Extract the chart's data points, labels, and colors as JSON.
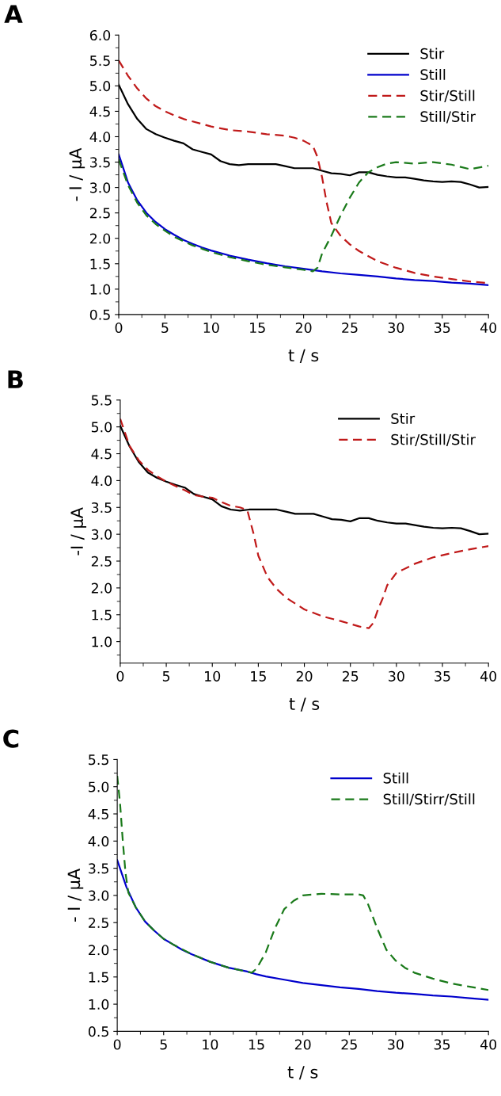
{
  "chart_data": [
    {
      "type": "line",
      "title": "A",
      "xlabel": "t / s",
      "ylabel": "- I / µA",
      "xlim": [
        0,
        40
      ],
      "xticks": [
        0,
        5,
        10,
        15,
        20,
        25,
        30,
        35,
        40
      ],
      "ylim": [
        0.5,
        6.0
      ],
      "yticks": [
        {
          "value": 0.5,
          "label": "0.5"
        },
        {
          "value": 1.0,
          "label": "1.0"
        },
        {
          "value": 1.5,
          "label": "1.5"
        },
        {
          "value": 2.0,
          "label": "2.0"
        },
        {
          "value": 2.5,
          "label": "2.5"
        },
        {
          "value": 3.0,
          "label": "3.0"
        },
        {
          "value": 3.5,
          "label": "3.5"
        },
        {
          "value": 4.0,
          "label": "4.0"
        },
        {
          "value": 4.5,
          "label": "4.5"
        },
        {
          "value": 5.0,
          "label": "5.0"
        },
        {
          "value": 5.5,
          "label": "5.5"
        },
        {
          "value": 6.0,
          "label": "6.0"
        }
      ],
      "grid": false,
      "legend": "top right",
      "marker": "none",
      "series": [
        {
          "name": "Stir",
          "color": "#000000",
          "line_style": "solid",
          "x": [
            0,
            1,
            2,
            3,
            4,
            5,
            6,
            7,
            8,
            9,
            10,
            11,
            12,
            13,
            14,
            15,
            16,
            17,
            18,
            19,
            20,
            21,
            22,
            23,
            24,
            25,
            26,
            27,
            28,
            29,
            30,
            31,
            32,
            33,
            34,
            35,
            36,
            37,
            38,
            39,
            40
          ],
          "values": [
            5.02,
            4.64,
            4.35,
            4.15,
            4.05,
            3.98,
            3.92,
            3.87,
            3.75,
            3.7,
            3.65,
            3.52,
            3.46,
            3.44,
            3.46,
            3.46,
            3.46,
            3.46,
            3.42,
            3.38,
            3.38,
            3.38,
            3.33,
            3.28,
            3.27,
            3.24,
            3.3,
            3.3,
            3.25,
            3.22,
            3.2,
            3.2,
            3.17,
            3.14,
            3.12,
            3.11,
            3.12,
            3.11,
            3.06,
            3.0,
            3.01
          ]
        },
        {
          "name": "Still",
          "color": "#0000cc",
          "line_style": "solid",
          "x": [
            0,
            1,
            2,
            3,
            4,
            5,
            6,
            7,
            8,
            9,
            10,
            12,
            14,
            16,
            18,
            20,
            22,
            24,
            26,
            28,
            30,
            32,
            34,
            36,
            38,
            40
          ],
          "values": [
            3.65,
            3.1,
            2.75,
            2.5,
            2.32,
            2.18,
            2.07,
            1.97,
            1.89,
            1.82,
            1.76,
            1.66,
            1.58,
            1.51,
            1.45,
            1.4,
            1.35,
            1.31,
            1.28,
            1.25,
            1.21,
            1.18,
            1.16,
            1.13,
            1.11,
            1.08
          ]
        },
        {
          "name": "Stir/Still",
          "color": "#c01a1a",
          "line_style": "dashed",
          "x": [
            0,
            1,
            2,
            3,
            4,
            5,
            6,
            7,
            8,
            9,
            10,
            12,
            14,
            16,
            18,
            19,
            20,
            21,
            21.5,
            22,
            22.5,
            23,
            24,
            25,
            26,
            27,
            28,
            30,
            32,
            34,
            36,
            38,
            40
          ],
          "values": [
            5.5,
            5.2,
            4.95,
            4.75,
            4.6,
            4.5,
            4.42,
            4.35,
            4.3,
            4.25,
            4.2,
            4.13,
            4.1,
            4.05,
            4.02,
            3.98,
            3.92,
            3.82,
            3.6,
            3.2,
            2.7,
            2.3,
            2.05,
            1.88,
            1.75,
            1.65,
            1.55,
            1.42,
            1.32,
            1.25,
            1.2,
            1.15,
            1.12
          ]
        },
        {
          "name": "Still/Stir",
          "color": "#1a7a1a",
          "line_style": "dashed",
          "x": [
            0,
            1,
            2,
            3,
            4,
            5,
            6,
            8,
            10,
            12,
            14,
            16,
            18,
            20,
            21,
            21.5,
            22,
            23,
            24,
            25,
            26,
            27,
            28,
            29,
            30,
            32,
            34,
            36,
            38,
            40
          ],
          "values": [
            3.55,
            3.05,
            2.7,
            2.45,
            2.28,
            2.15,
            2.03,
            1.86,
            1.73,
            1.63,
            1.55,
            1.48,
            1.43,
            1.38,
            1.35,
            1.42,
            1.7,
            2.05,
            2.45,
            2.8,
            3.1,
            3.3,
            3.4,
            3.47,
            3.5,
            3.47,
            3.5,
            3.45,
            3.36,
            3.43
          ]
        }
      ]
    },
    {
      "type": "line",
      "title": "B",
      "xlabel": "t / s",
      "ylabel": "-I / µA",
      "xlim": [
        0,
        40
      ],
      "xticks": [
        0,
        5,
        10,
        15,
        20,
        25,
        30,
        35,
        40
      ],
      "ylim": [
        0.6,
        5.5
      ],
      "yticks": [
        {
          "value": 1.0,
          "label": "1.0"
        },
        {
          "value": 1.5,
          "label": "1.5"
        },
        {
          "value": 2.0,
          "label": "2.0"
        },
        {
          "value": 2.5,
          "label": "2.5"
        },
        {
          "value": 3.0,
          "label": "3.0"
        },
        {
          "value": 3.5,
          "label": "3.5"
        },
        {
          "value": 4.0,
          "label": "4.0"
        },
        {
          "value": 4.5,
          "label": "4.5"
        },
        {
          "value": 5.0,
          "label": "5.0"
        },
        {
          "value": 5.5,
          "label": "5.5"
        }
      ],
      "grid": false,
      "legend": "top right",
      "marker": "none",
      "series": [
        {
          "name": "Stir",
          "color": "#000000",
          "line_style": "solid",
          "x": [
            0,
            1,
            2,
            3,
            4,
            5,
            6,
            7,
            8,
            9,
            10,
            11,
            12,
            13,
            14,
            15,
            16,
            17,
            18,
            19,
            20,
            21,
            22,
            23,
            24,
            25,
            26,
            27,
            28,
            29,
            30,
            31,
            32,
            33,
            34,
            35,
            36,
            37,
            38,
            39,
            40
          ],
          "values": [
            5.02,
            4.64,
            4.35,
            4.15,
            4.05,
            3.98,
            3.92,
            3.87,
            3.75,
            3.7,
            3.65,
            3.52,
            3.46,
            3.44,
            3.46,
            3.46,
            3.46,
            3.46,
            3.42,
            3.38,
            3.38,
            3.38,
            3.33,
            3.28,
            3.27,
            3.24,
            3.3,
            3.3,
            3.25,
            3.22,
            3.2,
            3.2,
            3.17,
            3.14,
            3.12,
            3.11,
            3.12,
            3.11,
            3.06,
            3.0,
            3.01
          ]
        },
        {
          "name": "Stir/Still/Stir",
          "color": "#c01a1a",
          "line_style": "dashed",
          "x": [
            0,
            1,
            2,
            3,
            4,
            5,
            6,
            7,
            8,
            9,
            10,
            11,
            12,
            13,
            13.8,
            14.5,
            15,
            16,
            17,
            18,
            20,
            22,
            24,
            26,
            27,
            27.5,
            28,
            28.5,
            29,
            30,
            32,
            34,
            36,
            38,
            40
          ],
          "values": [
            5.15,
            4.65,
            4.38,
            4.2,
            4.08,
            3.98,
            3.9,
            3.82,
            3.73,
            3.7,
            3.68,
            3.6,
            3.53,
            3.5,
            3.45,
            3.0,
            2.6,
            2.2,
            1.98,
            1.82,
            1.6,
            1.47,
            1.38,
            1.28,
            1.25,
            1.35,
            1.6,
            1.8,
            2.05,
            2.28,
            2.45,
            2.57,
            2.65,
            2.72,
            2.78
          ]
        }
      ]
    },
    {
      "type": "line",
      "title": "C",
      "xlabel": "t / s",
      "ylabel": "- I / µA",
      "xlim": [
        0,
        40
      ],
      "xticks": [
        0,
        5,
        10,
        15,
        20,
        25,
        30,
        35,
        40
      ],
      "ylim": [
        0.5,
        5.5
      ],
      "yticks": [
        {
          "value": 0.5,
          "label": "0.5"
        },
        {
          "value": 1.0,
          "label": "1.0"
        },
        {
          "value": 1.5,
          "label": "1.5"
        },
        {
          "value": 2.0,
          "label": "2.0"
        },
        {
          "value": 2.5,
          "label": "2.5"
        },
        {
          "value": 3.0,
          "label": "3.0"
        },
        {
          "value": 3.5,
          "label": "3.5"
        },
        {
          "value": 4.0,
          "label": "4.0"
        },
        {
          "value": 4.5,
          "label": "4.5"
        },
        {
          "value": 5.0,
          "label": "5.0"
        },
        {
          "value": 5.5,
          "label": "5.5"
        }
      ],
      "grid": false,
      "legend": "top right",
      "marker": "none",
      "series": [
        {
          "name": "Still",
          "color": "#0000cc",
          "line_style": "solid",
          "x": [
            0,
            1,
            2,
            3,
            4,
            5,
            6,
            7,
            8,
            10,
            12,
            14,
            15,
            16,
            18,
            20,
            22,
            24,
            26,
            28,
            30,
            32,
            34,
            36,
            38,
            40
          ],
          "values": [
            3.65,
            3.15,
            2.78,
            2.52,
            2.35,
            2.2,
            2.1,
            2.0,
            1.92,
            1.78,
            1.67,
            1.6,
            1.55,
            1.51,
            1.45,
            1.39,
            1.35,
            1.31,
            1.28,
            1.24,
            1.21,
            1.19,
            1.16,
            1.14,
            1.11,
            1.08
          ]
        },
        {
          "name": "Still/Stirr/Still",
          "color": "#1a7a1a",
          "line_style": "dashed",
          "x": [
            0,
            0.3,
            0.6,
            0.9,
            1.2,
            2,
            3,
            4,
            5,
            6,
            8,
            10,
            12,
            14.5,
            15,
            16,
            17,
            18,
            19,
            20,
            22,
            24,
            26,
            26.5,
            27,
            28,
            29,
            30,
            31,
            32,
            34,
            36,
            38,
            40
          ],
          "values": [
            5.2,
            4.7,
            4.0,
            3.4,
            3.05,
            2.78,
            2.52,
            2.35,
            2.2,
            2.1,
            1.92,
            1.78,
            1.67,
            1.58,
            1.65,
            1.95,
            2.4,
            2.75,
            2.9,
            3.0,
            3.03,
            3.02,
            3.02,
            3.0,
            2.85,
            2.4,
            2.0,
            1.8,
            1.67,
            1.58,
            1.47,
            1.38,
            1.32,
            1.26
          ]
        }
      ]
    }
  ]
}
